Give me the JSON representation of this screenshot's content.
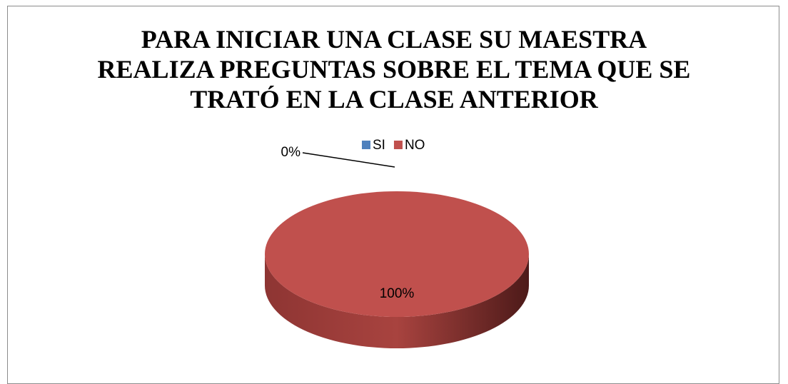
{
  "chart_data": {
    "type": "pie",
    "title": "PARA INICIAR UNA CLASE SU MAESTRA REALIZA PREGUNTAS SOBRE EL TEMA QUE SE TRATÓ EN LA CLASE ANTERIOR",
    "categories": [
      "SI",
      "NO"
    ],
    "values": [
      0,
      100
    ],
    "value_labels": [
      "0%",
      "100%"
    ],
    "colors": [
      "#4f81bd",
      "#c0504d"
    ],
    "legend": "top"
  }
}
